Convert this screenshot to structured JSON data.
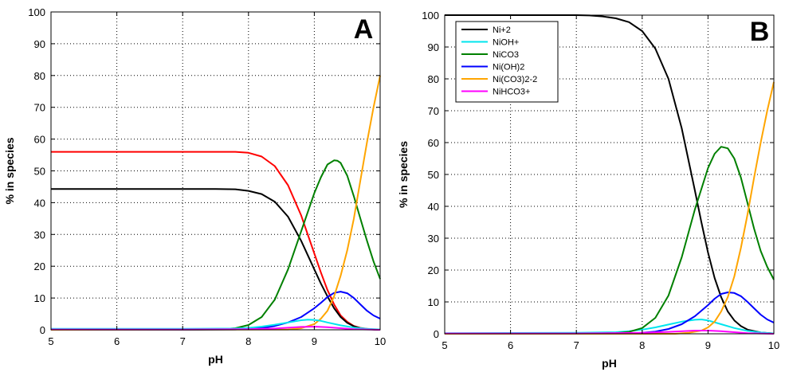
{
  "chart_data": [
    {
      "type": "line",
      "panel_label": "A",
      "xlabel": "pH",
      "ylabel": "% in species",
      "xlim": [
        5,
        10
      ],
      "ylim": [
        0,
        100
      ],
      "xticks": [
        "5",
        "6",
        "7",
        "8",
        "9",
        "10"
      ],
      "yticks": [
        "0",
        "10",
        "20",
        "30",
        "40",
        "50",
        "60",
        "70",
        "80",
        "90",
        "100"
      ],
      "grid": true,
      "legend": null,
      "series": [
        {
          "color": "#ff0000",
          "x": [
            5,
            6,
            7,
            7.5,
            7.8,
            8.0,
            8.2,
            8.4,
            8.6,
            8.8,
            9.0,
            9.1,
            9.2,
            9.3,
            9.4,
            9.5,
            9.6,
            9.7,
            9.8,
            9.9,
            10.0
          ],
          "y": [
            56,
            56,
            56,
            56,
            56,
            55.7,
            54.5,
            51.5,
            45.5,
            36,
            24,
            18,
            12.5,
            8,
            4.5,
            2.5,
            1.2,
            0.6,
            0.3,
            0.1,
            0
          ]
        },
        {
          "color": "#000000",
          "x": [
            5,
            6,
            7,
            7.5,
            7.8,
            8.0,
            8.2,
            8.4,
            8.6,
            8.8,
            9.0,
            9.1,
            9.2,
            9.3,
            9.4,
            9.5,
            9.6,
            9.7,
            9.8,
            9.9,
            10.0
          ],
          "y": [
            44.3,
            44.3,
            44.3,
            44.3,
            44.2,
            43.7,
            42.7,
            40.3,
            35.6,
            28,
            19,
            14.5,
            10.5,
            6.8,
            4,
            2.2,
            1.1,
            0.5,
            0.2,
            0.1,
            0
          ]
        },
        {
          "color": "#008000",
          "x": [
            5,
            7,
            7.6,
            7.8,
            8.0,
            8.2,
            8.4,
            8.6,
            8.8,
            9.0,
            9.1,
            9.2,
            9.3,
            9.35,
            9.4,
            9.5,
            9.6,
            9.7,
            9.8,
            9.9,
            10.0
          ],
          "y": [
            0,
            0,
            0.2,
            0.5,
            1.5,
            4,
            9.5,
            19,
            31,
            43,
            48,
            52,
            53.3,
            53.2,
            52.5,
            48.5,
            42,
            35,
            28,
            21.5,
            16
          ]
        },
        {
          "color": "#0000ff",
          "x": [
            5,
            7,
            7.8,
            8.0,
            8.2,
            8.4,
            8.6,
            8.8,
            9.0,
            9.1,
            9.2,
            9.3,
            9.4,
            9.5,
            9.6,
            9.7,
            9.8,
            9.9,
            10.0
          ],
          "y": [
            0,
            0,
            0.1,
            0.3,
            0.6,
            1.2,
            2.3,
            4,
            6.8,
            8.5,
            10.3,
            11.6,
            12,
            11.5,
            10,
            8,
            6,
            4.5,
            3.5
          ]
        },
        {
          "color": "#ffa500",
          "x": [
            5,
            8.6,
            8.8,
            9.0,
            9.1,
            9.2,
            9.3,
            9.4,
            9.5,
            9.6,
            9.7,
            9.8,
            9.9,
            10.0
          ],
          "y": [
            0,
            0.1,
            0.5,
            1.8,
            3.5,
            6,
            10.5,
            17,
            25,
            35,
            47,
            59,
            70,
            80
          ]
        },
        {
          "color": "#00e5ee",
          "x": [
            5,
            7,
            7.8,
            8.0,
            8.2,
            8.4,
            8.6,
            8.8,
            8.9,
            9.0,
            9.1,
            9.2,
            9.4,
            9.6,
            9.8,
            10.0
          ],
          "y": [
            0.3,
            0.3,
            0.4,
            0.6,
            1,
            1.6,
            2.3,
            3,
            3.2,
            3.1,
            2.8,
            2.3,
            1.4,
            0.7,
            0.3,
            0.1
          ]
        },
        {
          "color": "#ff00ff",
          "x": [
            5,
            7,
            8.0,
            8.4,
            8.8,
            9.0,
            9.2,
            9.4,
            9.6,
            9.8,
            10.0
          ],
          "y": [
            0.1,
            0.1,
            0.2,
            0.4,
            0.9,
            1,
            0.8,
            0.5,
            0.2,
            0.1,
            0
          ]
        }
      ]
    },
    {
      "type": "line",
      "panel_label": "B",
      "xlabel": "pH",
      "ylabel": "% in species",
      "xlim": [
        5,
        10
      ],
      "ylim": [
        0,
        100
      ],
      "xticks": [
        "5",
        "6",
        "7",
        "8",
        "9",
        "10"
      ],
      "yticks": [
        "0",
        "10",
        "20",
        "30",
        "40",
        "50",
        "60",
        "70",
        "80",
        "90",
        "100"
      ],
      "grid": true,
      "legend": "top-left",
      "series": [
        {
          "name": "Ni+2",
          "color": "#000000",
          "x": [
            5,
            6,
            7,
            7.2,
            7.4,
            7.6,
            7.8,
            8.0,
            8.2,
            8.4,
            8.6,
            8.8,
            8.9,
            9.0,
            9.1,
            9.2,
            9.3,
            9.4,
            9.5,
            9.6,
            9.8,
            10.0
          ],
          "y": [
            100,
            100,
            100,
            99.9,
            99.6,
            99,
            97.8,
            95,
            89.5,
            80,
            64.5,
            45,
            35,
            25.5,
            17.5,
            11.5,
            7,
            4.2,
            2.4,
            1.3,
            0.4,
            0.1
          ]
        },
        {
          "name": "NiOH+",
          "color": "#00e5ee",
          "x": [
            5,
            7,
            7.6,
            7.8,
            8.0,
            8.2,
            8.4,
            8.6,
            8.8,
            8.9,
            9.0,
            9.2,
            9.4,
            9.6,
            9.8,
            10.0
          ],
          "y": [
            0.2,
            0.3,
            0.5,
            0.8,
            1.3,
            2,
            2.9,
            3.8,
            4.4,
            4.5,
            4.2,
            3,
            1.8,
            0.9,
            0.4,
            0.1
          ]
        },
        {
          "name": "NiCO3",
          "color": "#008000",
          "x": [
            5,
            7,
            7.6,
            7.8,
            8.0,
            8.2,
            8.4,
            8.6,
            8.8,
            9.0,
            9.1,
            9.2,
            9.3,
            9.4,
            9.5,
            9.6,
            9.7,
            9.8,
            9.9,
            10.0
          ],
          "y": [
            0,
            0,
            0.2,
            0.6,
            1.8,
            5,
            12,
            24,
            39,
            52,
            56.5,
            58.7,
            58.2,
            55,
            49,
            41,
            33,
            26,
            21,
            17
          ]
        },
        {
          "name": "Ni(OH)2",
          "color": "#0000ff",
          "x": [
            5,
            7,
            7.8,
            8.0,
            8.2,
            8.4,
            8.6,
            8.8,
            9.0,
            9.1,
            9.2,
            9.3,
            9.4,
            9.5,
            9.6,
            9.7,
            9.8,
            9.9,
            10.0
          ],
          "y": [
            0,
            0,
            0.1,
            0.3,
            0.7,
            1.5,
            3,
            5.5,
            9,
            11,
            12.5,
            13,
            12.8,
            11.8,
            10,
            8,
            6,
            4.5,
            3.5
          ]
        },
        {
          "name": "Ni(CO3)2-2",
          "color": "#ffa500",
          "x": [
            5,
            8.5,
            8.7,
            8.9,
            9.0,
            9.1,
            9.2,
            9.3,
            9.4,
            9.5,
            9.6,
            9.7,
            9.8,
            9.9,
            10.0
          ],
          "y": [
            0,
            0,
            0.3,
            1,
            2,
            3.8,
            7,
            11.5,
            18,
            27,
            37.5,
            49,
            60,
            70,
            79
          ]
        },
        {
          "name": "NiHCO3+",
          "color": "#ff00ff",
          "x": [
            5,
            7,
            8.0,
            8.4,
            8.8,
            9.0,
            9.2,
            9.4,
            9.6,
            9.8,
            10.0
          ],
          "y": [
            0.1,
            0.1,
            0.3,
            0.6,
            1,
            1,
            0.8,
            0.5,
            0.2,
            0.1,
            0
          ]
        }
      ]
    }
  ]
}
